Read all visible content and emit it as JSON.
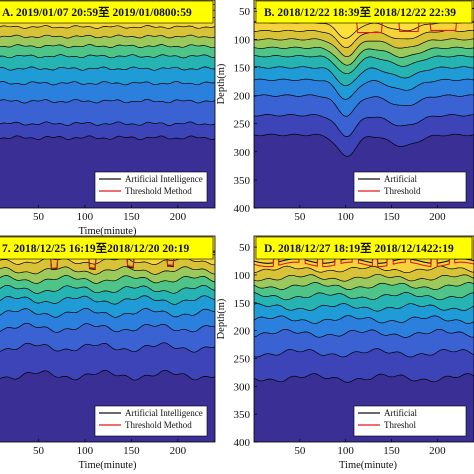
{
  "palette": {
    "bands": [
      "#3a2f95",
      "#3c44b8",
      "#3b62d3",
      "#2a80dc",
      "#1f9bd6",
      "#26b4b3",
      "#4ec488",
      "#9bc95c",
      "#d8c338",
      "#f6d33b",
      "#fde03a"
    ],
    "title_bg": "#ffff00",
    "ai_line": "#111111",
    "threshold_line": "#e01a1a",
    "contour_line": "#000000"
  },
  "chart_data": [
    {
      "type": "heatmap",
      "panel": "A",
      "title": "A. 2019/01/07 20:59至 2019/01/0800:59",
      "xlabel": "Time(minute)",
      "ylabel": "",
      "xlim": [
        0,
        240
      ],
      "ylim": [
        400,
        30
      ],
      "x_ticks": [
        "0",
        "50",
        "100",
        "150",
        "200"
      ],
      "y_ticks": [],
      "legend": {
        "placement": "bottom-right",
        "entries": [
          "Artificial Intelligence",
          "Threshold Method"
        ]
      },
      "profile": {
        "kind": "flat",
        "layer_depths": [
          48,
          62,
          78,
          95,
          112,
          130,
          152,
          178,
          210,
          250,
          275
        ]
      },
      "series": [
        {
          "name": "Artificial Intelligence",
          "kind": "flat",
          "depth": 38
        },
        {
          "name": "Threshold Method",
          "kind": "flat",
          "depth": 38
        }
      ]
    },
    {
      "type": "heatmap",
      "panel": "B",
      "title": "B. 2018/12/22 18:39至 2018/12/22 22:39",
      "xlabel": "",
      "ylabel": "Depth(m)",
      "xlim": [
        0,
        240
      ],
      "ylim": [
        400,
        30
      ],
      "x_ticks": [
        "50",
        "100",
        "150",
        "200"
      ],
      "y_ticks": [
        "50",
        "100",
        "150",
        "200",
        "250",
        "300",
        "350",
        "400"
      ],
      "legend": {
        "placement": "bottom-right",
        "entries": [
          "Artificial",
          "Threshold"
        ]
      },
      "profile": {
        "kind": "trough",
        "layer_depths": [
          70,
          85,
          100,
          115,
          130,
          150,
          172,
          200,
          235,
          270
        ]
      },
      "series": [
        {
          "name": "Artificial",
          "kind": "steps",
          "depth": 45
        },
        {
          "name": "Threshold",
          "kind": "steps",
          "depth": 68
        }
      ]
    },
    {
      "type": "heatmap",
      "panel": "C",
      "title": "7. 2018/12/25 16:19至2018/12/20 20:19",
      "xlabel": "Time(minute)",
      "ylabel": "",
      "xlim": [
        0,
        240
      ],
      "ylim": [
        400,
        30
      ],
      "x_ticks": [
        "0",
        "50",
        "100",
        "150",
        "200"
      ],
      "y_ticks": [],
      "legend": {
        "placement": "bottom-right",
        "entries": [
          "Artificial Intelligence",
          "Threshold Method"
        ]
      },
      "profile": {
        "kind": "wavy",
        "layer_depths": [
          58,
          75,
          92,
          108,
          126,
          145,
          168,
          195,
          230,
          280
        ]
      },
      "series": [
        {
          "name": "Artificial Intelligence",
          "kind": "wavy",
          "depth": 62
        },
        {
          "name": "Threshold Method",
          "kind": "wavy",
          "depth": 60
        }
      ]
    },
    {
      "type": "heatmap",
      "panel": "D",
      "title": "D. 2018/12/27 18:19至 2018/12/1422:19",
      "xlabel": "Time(minute)",
      "ylabel": "Depth(m)",
      "xlim": [
        0,
        240
      ],
      "ylim": [
        400,
        30
      ],
      "x_ticks": [
        "50",
        "100",
        "150",
        "200"
      ],
      "y_ticks": [
        "50",
        "100",
        "150",
        "200",
        "250",
        "300",
        "350",
        "400"
      ],
      "legend": {
        "placement": "bottom-right",
        "entries": [
          "Artificial",
          "Threshol"
        ]
      },
      "profile": {
        "kind": "spiky",
        "layer_depths": [
          90,
          105,
          120,
          138,
          158,
          180,
          205,
          240,
          285
        ]
      },
      "series": [
        {
          "name": "Artificial",
          "kind": "spiky",
          "depth": 75
        },
        {
          "name": "Threshol",
          "kind": "spiky",
          "depth": 78
        }
      ]
    }
  ]
}
